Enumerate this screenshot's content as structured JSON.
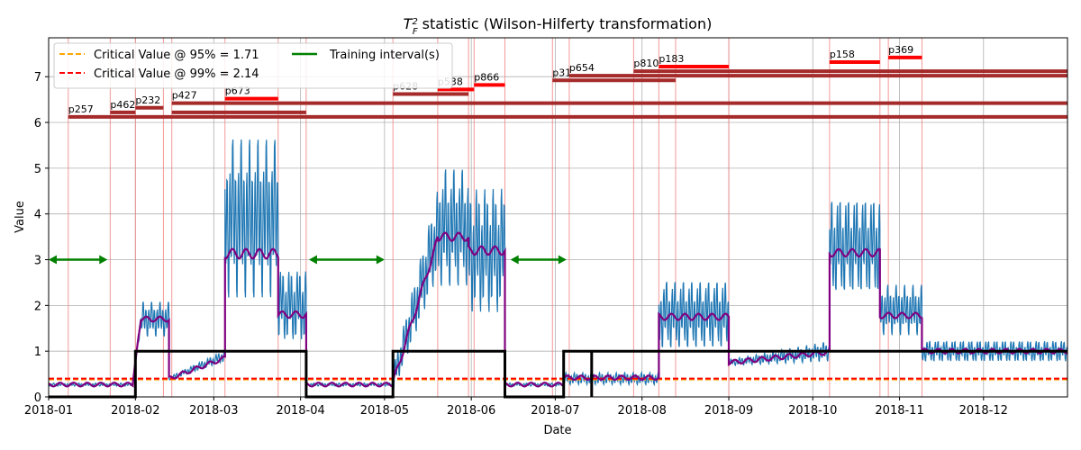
{
  "chart_data": {
    "type": "line",
    "title_main": "T",
    "title_sup": "2",
    "title_sub": "F",
    "title_rest": " statistic (Wilson-Hilferty transformation)",
    "xlabel": "Date",
    "ylabel": "Value",
    "xlim": [
      "2018-01-01",
      "2018-12-31"
    ],
    "ylim": [
      0,
      7.85
    ],
    "x_ticks": [
      "2018-01",
      "2018-02",
      "2018-03",
      "2018-04",
      "2018-05",
      "2018-06",
      "2018-07",
      "2018-08",
      "2018-09",
      "2018-10",
      "2018-11",
      "2018-12"
    ],
    "y_ticks": [
      0,
      1,
      2,
      3,
      4,
      5,
      6,
      7
    ],
    "grid": true,
    "legend_position": "top-left",
    "legend": [
      {
        "label": "Critical Value @ 95% = 1.71",
        "color": "#ffa500",
        "style": "dashed"
      },
      {
        "label": "Critical Value @ 99% = 2.14",
        "color": "#ff0000",
        "style": "dashed"
      },
      {
        "label": "Training interval(s)",
        "color": "#008000",
        "style": "solid"
      }
    ],
    "critical_95": 0.38,
    "critical_99": 0.4,
    "colors": {
      "statistic": "#1f77b4",
      "smoothed": "#800080",
      "state": "#000000",
      "training": "#008000",
      "marker_line": "#f08080",
      "bar_dark": "#a52a2a",
      "bar_bright": "#ff0000"
    },
    "segments": [
      {
        "start": "2018-01-01",
        "end": "2018-01-31",
        "base": 0.27,
        "amp": 0.03,
        "smooth": 0.27
      },
      {
        "start": "2018-01-31",
        "end": "2018-02-03",
        "base": 0.27,
        "end_base": 1.7,
        "amp": 0.15,
        "smooth": 0.27,
        "end_smooth": 1.7
      },
      {
        "start": "2018-02-03",
        "end": "2018-02-13",
        "base": 1.7,
        "amp": 0.35,
        "smooth": 1.7
      },
      {
        "start": "2018-02-13",
        "end": "2018-03-05",
        "base": 0.4,
        "end_base": 0.9,
        "amp": 0.12,
        "smooth": 0.4,
        "end_smooth": 0.85
      },
      {
        "start": "2018-03-05",
        "end": "2018-03-24",
        "base": 3.9,
        "amp": 1.6,
        "smooth": 3.13
      },
      {
        "start": "2018-03-24",
        "end": "2018-04-03",
        "base": 2.0,
        "amp": 0.75,
        "smooth": 1.8
      },
      {
        "start": "2018-04-03",
        "end": "2018-05-04",
        "base": 0.27,
        "amp": 0.03,
        "smooth": 0.27
      },
      {
        "start": "2018-05-04",
        "end": "2018-05-20",
        "base": 0.35,
        "end_base": 3.6,
        "amp": 0.9,
        "smooth": 0.3,
        "end_smooth": 3.45
      },
      {
        "start": "2018-05-20",
        "end": "2018-05-31",
        "base": 3.7,
        "amp": 1.2,
        "smooth": 3.5
      },
      {
        "start": "2018-05-31",
        "end": "2018-06-13",
        "base": 3.2,
        "amp": 1.3,
        "smooth": 3.2
      },
      {
        "start": "2018-06-13",
        "end": "2018-07-04",
        "base": 0.27,
        "amp": 0.03,
        "smooth": 0.27
      },
      {
        "start": "2018-07-04",
        "end": "2018-08-07",
        "base": 0.4,
        "amp": 0.12,
        "smooth": 0.42
      },
      {
        "start": "2018-08-07",
        "end": "2018-09-01",
        "base": 1.8,
        "amp": 0.7,
        "smooth": 1.75
      },
      {
        "start": "2018-09-01",
        "end": "2018-10-07",
        "base": 0.75,
        "end_base": 1.0,
        "amp": 0.2,
        "smooth": 0.75,
        "end_smooth": 0.98
      },
      {
        "start": "2018-10-07",
        "end": "2018-10-25",
        "base": 3.3,
        "amp": 1.0,
        "smooth": 3.15
      },
      {
        "start": "2018-10-25",
        "end": "2018-11-09",
        "base": 1.9,
        "amp": 0.5,
        "smooth": 1.78
      },
      {
        "start": "2018-11-09",
        "end": "2018-12-31",
        "base": 1.0,
        "amp": 0.22,
        "smooth": 1.0
      }
    ],
    "state_series": [
      {
        "x": "2018-01-01",
        "y": 0
      },
      {
        "x": "2018-02-01",
        "y": 0
      },
      {
        "x": "2018-02-01",
        "y": 1
      },
      {
        "x": "2018-04-03",
        "y": 1
      },
      {
        "x": "2018-04-03",
        "y": 0
      },
      {
        "x": "2018-05-04",
        "y": 0
      },
      {
        "x": "2018-05-04",
        "y": 1
      },
      {
        "x": "2018-06-13",
        "y": 1
      },
      {
        "x": "2018-06-13",
        "y": 0
      },
      {
        "x": "2018-07-04",
        "y": 0
      },
      {
        "x": "2018-07-04",
        "y": 1
      },
      {
        "x": "2018-07-14",
        "y": 1
      },
      {
        "x": "2018-07-14",
        "y": 0
      },
      {
        "x": "2018-07-14",
        "y": 1
      },
      {
        "x": "2018-12-31",
        "y": 1
      }
    ],
    "training_intervals": [
      {
        "start": "2018-01-01",
        "end": "2018-01-22",
        "y": 3
      },
      {
        "start": "2018-04-04",
        "end": "2018-05-01",
        "y": 3
      },
      {
        "start": "2018-06-15",
        "end": "2018-07-05",
        "y": 3
      }
    ],
    "marker_lines": [
      "2018-01-08",
      "2018-01-23",
      "2018-02-01",
      "2018-02-11",
      "2018-02-14",
      "2018-03-05",
      "2018-03-24",
      "2018-04-03",
      "2018-05-04",
      "2018-05-20",
      "2018-05-31",
      "2018-06-02",
      "2018-06-13",
      "2018-06-30",
      "2018-07-06",
      "2018-07-29",
      "2018-08-07",
      "2018-08-13",
      "2018-09-01",
      "2018-10-07",
      "2018-10-25",
      "2018-10-28",
      "2018-11-09"
    ],
    "alarm_bars": [
      {
        "label": "p257",
        "start": "2018-01-08",
        "end": "2018-12-31",
        "y": 6.12,
        "color": "dark"
      },
      {
        "label": "p462",
        "start": "2018-01-23",
        "end": "2018-02-01",
        "y": 6.22,
        "color": "dark"
      },
      {
        "label": "p232",
        "start": "2018-02-01",
        "end": "2018-02-11",
        "y": 6.32,
        "color": "dark"
      },
      {
        "label": "p427",
        "start": "2018-02-14",
        "end": "2018-12-31",
        "y": 6.42,
        "color": "dark"
      },
      {
        "label": "p673",
        "start": "2018-03-05",
        "end": "2018-03-24",
        "y": 6.52,
        "color": "bright"
      },
      {
        "label": "",
        "start": "2018-02-14",
        "end": "2018-04-03",
        "y": 6.22,
        "color": "dark"
      },
      {
        "label": "p628",
        "start": "2018-05-04",
        "end": "2018-05-31",
        "y": 6.62,
        "color": "dark"
      },
      {
        "label": "p538",
        "start": "2018-05-20",
        "end": "2018-06-02",
        "y": 6.72,
        "color": "bright"
      },
      {
        "label": "p866",
        "start": "2018-06-02",
        "end": "2018-06-13",
        "y": 6.82,
        "color": "bright"
      },
      {
        "label": "p31",
        "start": "2018-06-30",
        "end": "2018-08-13",
        "y": 6.92,
        "color": "dark"
      },
      {
        "label": "p654",
        "start": "2018-07-06",
        "end": "2018-12-31",
        "y": 7.02,
        "color": "dark"
      },
      {
        "label": "p810",
        "start": "2018-07-29",
        "end": "2018-12-31",
        "y": 7.12,
        "color": "dark"
      },
      {
        "label": "p183",
        "start": "2018-08-07",
        "end": "2018-09-01",
        "y": 7.22,
        "color": "bright"
      },
      {
        "label": "p158",
        "start": "2018-10-07",
        "end": "2018-10-25",
        "y": 7.32,
        "color": "bright"
      },
      {
        "label": "p369",
        "start": "2018-10-28",
        "end": "2018-11-09",
        "y": 7.42,
        "color": "bright"
      }
    ]
  }
}
